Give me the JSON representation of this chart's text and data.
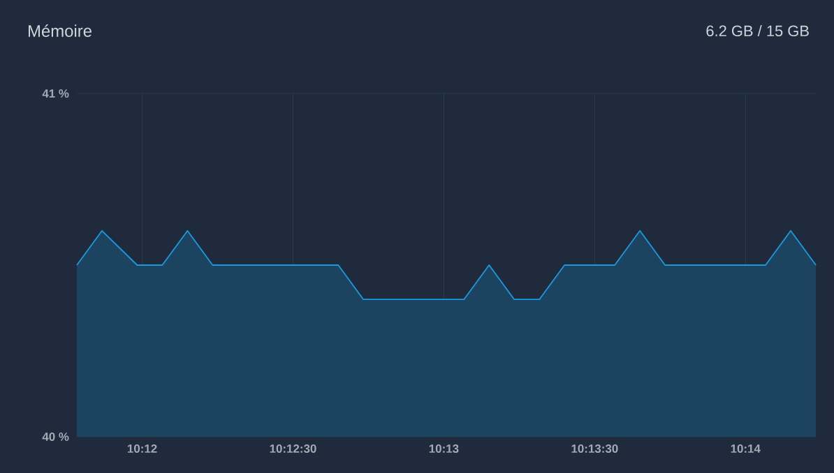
{
  "chart_data": {
    "type": "area",
    "title": "Mémoire",
    "annotations": [
      "6.2 GB / 15 GB"
    ],
    "x": [
      10.196389,
      10.197778,
      10.199722,
      10.201111,
      10.2025,
      10.203889,
      10.210833,
      10.212222,
      10.217778,
      10.219167,
      10.220556,
      10.221944,
      10.223333,
      10.226111,
      10.2275,
      10.228889,
      10.234444,
      10.235833,
      10.237222
    ],
    "series": [
      {
        "color": "#1a9be0",
        "values": [
          40.5,
          40.6,
          40.5,
          40.5,
          40.6,
          40.5,
          40.5,
          40.4,
          40.4,
          40.5,
          40.4,
          40.4,
          40.5,
          40.5,
          40.6,
          40.5,
          40.5,
          40.6,
          40.5
        ]
      }
    ],
    "xlim": [
      10.196389,
      10.237222
    ],
    "xticks": [
      {
        "value": 10.2,
        "label": "10:12"
      },
      {
        "value": 10.208333,
        "label": "10:12:30"
      },
      {
        "value": 10.216667,
        "label": "10:13"
      },
      {
        "value": 10.225,
        "label": "10:13:30"
      },
      {
        "value": 10.233333,
        "label": "10:14"
      }
    ],
    "ylim": [
      40,
      41
    ],
    "yticks": [
      {
        "value": 40,
        "label": "40 %"
      },
      {
        "value": 41,
        "label": "41 %"
      }
    ],
    "grid": true
  }
}
